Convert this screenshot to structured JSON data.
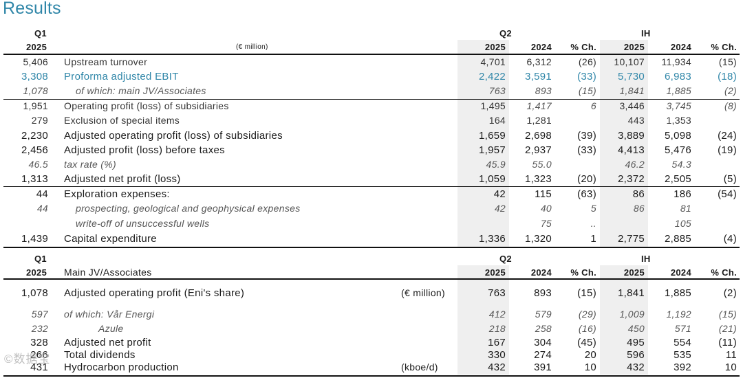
{
  "title": "Results",
  "t1": {
    "q1": "Q1",
    "year": "2025",
    "unit": "(€ million)",
    "q2": "Q2",
    "ih": "IH",
    "cols": [
      "2025",
      "2024",
      "% Ch.",
      "2025",
      "2024",
      "% Ch."
    ],
    "rows": [
      {
        "q1": "5,406",
        "label": "Upstream turnover",
        "v": [
          "4,701",
          "6,312",
          "(26)",
          "10,107",
          "11,934",
          "(15)"
        ]
      },
      {
        "q1": "3,308",
        "label": "Proforma adjusted EBIT",
        "v": [
          "2,422",
          "3,591",
          "(33)",
          "5,730",
          "6,983",
          "(18)"
        ]
      },
      {
        "q1": "1,078",
        "label": "of which: main JV/Associates",
        "v": [
          "763",
          "893",
          "(15)",
          "1,841",
          "1,885",
          "(2)"
        ]
      },
      {
        "q1": "1,951",
        "label": "Operating profit (loss) of subsidiaries",
        "v": [
          "1,495",
          "1,417",
          "6",
          "3,446",
          "3,745",
          "(8)"
        ]
      },
      {
        "q1": "279",
        "label": "Exclusion of special items",
        "v": [
          "164",
          "1,281",
          "",
          "443",
          "1,353",
          ""
        ]
      },
      {
        "q1": "2,230",
        "label": "Adjusted operating profit (loss) of subsidiaries",
        "v": [
          "1,659",
          "2,698",
          "(39)",
          "3,889",
          "5,098",
          "(24)"
        ]
      },
      {
        "q1": "2,456",
        "label": "Adjusted profit (loss) before taxes",
        "v": [
          "1,957",
          "2,937",
          "(33)",
          "4,413",
          "5,476",
          "(19)"
        ]
      },
      {
        "q1": "46.5",
        "label": "tax rate (%)",
        "v": [
          "45.9",
          "55.0",
          "",
          "46.2",
          "54.3",
          ""
        ]
      },
      {
        "q1": "1,313",
        "label": "Adjusted net profit (loss)",
        "v": [
          "1,059",
          "1,323",
          "(20)",
          "2,372",
          "2,505",
          "(5)"
        ]
      },
      {
        "q1": "44",
        "label": "Exploration expenses:",
        "v": [
          "42",
          "115",
          "(63)",
          "86",
          "186",
          "(54)"
        ]
      },
      {
        "q1": "44",
        "label": "prospecting, geological and geophysical expenses",
        "v": [
          "42",
          "40",
          "5",
          "86",
          "81",
          ""
        ]
      },
      {
        "q1": "",
        "label": "write-off of unsuccessful wells",
        "v": [
          "",
          "75",
          "..",
          "",
          "105",
          ""
        ]
      },
      {
        "q1": "1,439",
        "label": "Capital expenditure",
        "v": [
          "1,336",
          "1,320",
          "1",
          "2,775",
          "2,885",
          "(4)"
        ]
      }
    ]
  },
  "t2": {
    "q1": "Q1",
    "year": "2025",
    "section": "Main JV/Associates",
    "q2": "Q2",
    "ih": "IH",
    "cols": [
      "2025",
      "2024",
      "% Ch.",
      "2025",
      "2024",
      "% Ch."
    ],
    "rows": [
      {
        "q1": "1,078",
        "label": "Adjusted operating profit (Eni's share)",
        "unit": "(€ million)",
        "v": [
          "763",
          "893",
          "(15)",
          "1,841",
          "1,885",
          "(2)"
        ]
      },
      {
        "q1": "597",
        "label": "of which: Vår Energi",
        "unit": "",
        "v": [
          "412",
          "579",
          "(29)",
          "1,009",
          "1,192",
          "(15)"
        ]
      },
      {
        "q1": "232",
        "label": "Azule",
        "unit": "",
        "v": [
          "218",
          "258",
          "(16)",
          "450",
          "571",
          "(21)"
        ]
      },
      {
        "q1": "328",
        "label": "Adjusted net profit",
        "unit": "",
        "v": [
          "167",
          "304",
          "(45)",
          "495",
          "554",
          "(11)"
        ]
      },
      {
        "q1": "266",
        "label": "Total dividends",
        "unit": "",
        "v": [
          "330",
          "274",
          "20",
          "596",
          "535",
          "11"
        ]
      },
      {
        "q1": "431",
        "label": "Hydrocarbon production",
        "unit": "(kboe/d)",
        "v": [
          "432",
          "391",
          "10",
          "432",
          "392",
          "10"
        ]
      }
    ]
  },
  "watermark": "©数据宝"
}
